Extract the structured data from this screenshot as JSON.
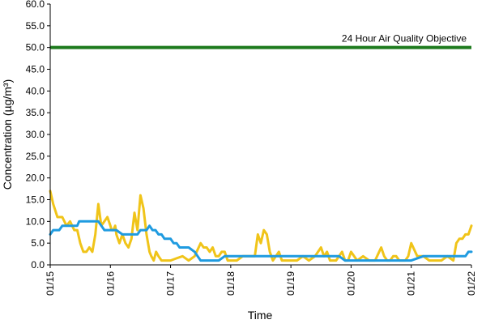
{
  "chart_data": {
    "type": "line",
    "title": "",
    "xlabel": "Time",
    "ylabel": "Concentration (µg/m³)",
    "ylim": [
      0,
      60
    ],
    "yticks": [
      "0.0",
      "5.0",
      "10.0",
      "15.0",
      "20.0",
      "25.0",
      "30.0",
      "35.0",
      "40.0",
      "45.0",
      "50.0",
      "55.0",
      "60.0"
    ],
    "xlim": [
      0,
      7
    ],
    "xtick_labels": [
      "01/15",
      "01/16",
      "01/17",
      "01/18",
      "01/19",
      "01/20",
      "01/21",
      "01/22"
    ],
    "grid": false,
    "objective": {
      "label": "24 Hour Air Quality Objective",
      "value": 50,
      "color": "#1e7b1e"
    },
    "series": [
      {
        "color": "#f0c419",
        "x": [
          0.0,
          0.05,
          0.12,
          0.2,
          0.27,
          0.33,
          0.4,
          0.45,
          0.5,
          0.55,
          0.6,
          0.65,
          0.7,
          0.75,
          0.8,
          0.85,
          0.9,
          0.95,
          1.0,
          1.02,
          1.05,
          1.08,
          1.1,
          1.15,
          1.2,
          1.25,
          1.3,
          1.35,
          1.4,
          1.45,
          1.5,
          1.55,
          1.6,
          1.65,
          1.68,
          1.72,
          1.76,
          1.8,
          1.85,
          1.9,
          1.95,
          2.0,
          2.1,
          2.2,
          2.3,
          2.4,
          2.5,
          2.55,
          2.6,
          2.65,
          2.7,
          2.75,
          2.8,
          2.85,
          2.9,
          2.95,
          3.0,
          3.05,
          3.1,
          3.2,
          3.3,
          3.4,
          3.45,
          3.5,
          3.55,
          3.6,
          3.65,
          3.7,
          3.75,
          3.8,
          3.85,
          3.9,
          3.95,
          4.0,
          4.1,
          4.2,
          4.3,
          4.4,
          4.5,
          4.55,
          4.6,
          4.65,
          4.7,
          4.75,
          4.8,
          4.85,
          4.9,
          4.95,
          5.0,
          5.1,
          5.2,
          5.3,
          5.4,
          5.5,
          5.55,
          5.6,
          5.65,
          5.7,
          5.75,
          5.8,
          5.85,
          5.9,
          5.95,
          6.0,
          6.1,
          6.2,
          6.3,
          6.4,
          6.5,
          6.6,
          6.7,
          6.75,
          6.8,
          6.85,
          6.9,
          6.95,
          7.0
        ],
        "values": [
          17.0,
          14.0,
          11.0,
          11.0,
          9.0,
          10.0,
          8.0,
          8.0,
          5.0,
          3.0,
          3.0,
          4.0,
          3.0,
          7.0,
          14.0,
          9.0,
          10.0,
          11.0,
          9.0,
          8.0,
          8.0,
          9.0,
          7.0,
          5.0,
          7.0,
          5.0,
          4.0,
          6.0,
          12.0,
          8.0,
          16.0,
          13.0,
          7.0,
          3.0,
          2.0,
          1.0,
          3.0,
          2.0,
          1.0,
          1.0,
          1.0,
          1.0,
          1.5,
          2.0,
          1.0,
          2.0,
          5.0,
          4.0,
          4.0,
          3.0,
          4.0,
          2.0,
          2.0,
          3.0,
          3.0,
          1.0,
          1.0,
          1.0,
          1.0,
          2.0,
          2.0,
          2.0,
          7.0,
          5.0,
          8.0,
          7.0,
          3.0,
          1.0,
          2.0,
          3.0,
          1.0,
          1.0,
          1.0,
          1.0,
          1.0,
          2.0,
          1.0,
          2.0,
          4.0,
          2.0,
          3.0,
          1.0,
          1.0,
          1.0,
          2.0,
          3.0,
          1.0,
          1.0,
          3.0,
          1.0,
          2.0,
          1.0,
          1.0,
          4.0,
          2.0,
          1.0,
          1.0,
          2.0,
          2.0,
          1.0,
          1.0,
          1.0,
          2.0,
          5.0,
          2.0,
          2.0,
          1.0,
          1.0,
          1.0,
          2.0,
          1.0,
          5.0,
          6.0,
          6.0,
          7.0,
          7.0,
          9.0
        ]
      },
      {
        "color": "#1f9be0",
        "x": [
          0.0,
          0.05,
          0.15,
          0.2,
          0.3,
          0.45,
          0.48,
          0.6,
          0.8,
          0.85,
          0.9,
          1.0,
          1.1,
          1.2,
          1.3,
          1.45,
          1.5,
          1.6,
          1.65,
          1.7,
          1.75,
          1.8,
          1.85,
          1.9,
          1.95,
          2.0,
          2.05,
          2.1,
          2.15,
          2.2,
          2.3,
          2.4,
          2.45,
          2.5,
          2.55,
          2.6,
          2.7,
          2.8,
          2.9,
          3.0,
          3.2,
          3.4,
          3.6,
          3.8,
          4.0,
          4.2,
          4.4,
          4.6,
          4.8,
          4.9,
          5.0,
          5.2,
          5.4,
          5.6,
          5.8,
          5.9,
          6.0,
          6.2,
          6.4,
          6.6,
          6.8,
          6.9,
          6.95,
          7.0
        ],
        "values": [
          7.0,
          8.0,
          8.0,
          9.0,
          9.0,
          9.0,
          10.0,
          10.0,
          10.0,
          9.0,
          8.0,
          8.0,
          8.0,
          7.0,
          7.0,
          7.0,
          8.0,
          8.0,
          9.0,
          8.0,
          8.0,
          7.0,
          7.0,
          6.0,
          6.0,
          6.0,
          5.0,
          5.0,
          4.0,
          4.0,
          4.0,
          3.0,
          2.0,
          1.0,
          1.0,
          1.0,
          1.0,
          1.0,
          2.0,
          2.0,
          2.0,
          2.0,
          2.0,
          2.0,
          2.0,
          2.0,
          2.0,
          2.0,
          2.0,
          1.0,
          1.0,
          1.0,
          1.0,
          1.0,
          1.0,
          1.0,
          1.0,
          2.0,
          2.0,
          2.0,
          2.0,
          2.0,
          3.0,
          3.0
        ]
      }
    ]
  }
}
